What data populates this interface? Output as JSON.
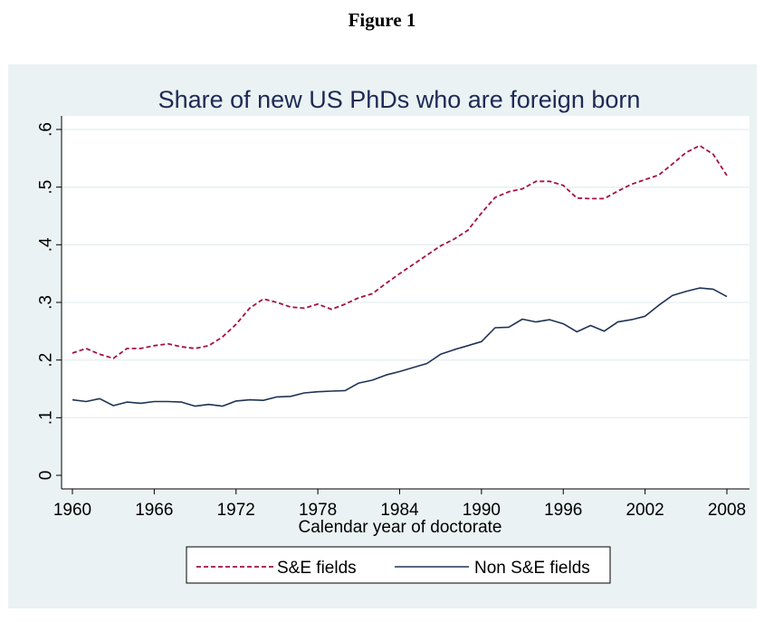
{
  "heading": "Figure 1",
  "chart_data": {
    "type": "line",
    "title": "Share of new US PhDs who are foreign born",
    "xlabel": "Calendar year of doctorate",
    "ylabel": "",
    "xlim": [
      1960,
      2008
    ],
    "ylim": [
      0,
      0.6
    ],
    "xticks": [
      1960,
      1966,
      1972,
      1978,
      1984,
      1990,
      1996,
      2002,
      2008
    ],
    "xtick_labels": [
      "1960",
      "1966",
      "1972",
      "1978",
      "1984",
      "1990",
      "1996",
      "2002",
      "2008"
    ],
    "yticks": [
      0,
      0.1,
      0.2,
      0.3,
      0.4,
      0.5,
      0.6
    ],
    "ytick_labels": [
      "0",
      ".1",
      ".2",
      ".3",
      ".4",
      ".5",
      ".6"
    ],
    "grid": true,
    "legend_position": "bottom",
    "x": [
      1960,
      1961,
      1962,
      1963,
      1964,
      1965,
      1966,
      1967,
      1968,
      1969,
      1970,
      1971,
      1972,
      1973,
      1974,
      1975,
      1976,
      1977,
      1978,
      1979,
      1980,
      1981,
      1982,
      1983,
      1984,
      1985,
      1986,
      1987,
      1988,
      1989,
      1990,
      1991,
      1992,
      1993,
      1994,
      1995,
      1996,
      1997,
      1998,
      1999,
      2000,
      2001,
      2002,
      2003,
      2004,
      2005,
      2006,
      2007,
      2008
    ],
    "series": [
      {
        "name": "S&E fields",
        "color": "#a3123f",
        "style": "dashed",
        "values": [
          0.212,
          0.22,
          0.21,
          0.203,
          0.22,
          0.22,
          0.225,
          0.228,
          0.223,
          0.22,
          0.225,
          0.24,
          0.262,
          0.29,
          0.306,
          0.3,
          0.292,
          0.29,
          0.297,
          0.288,
          0.297,
          0.308,
          0.315,
          0.333,
          0.35,
          0.366,
          0.382,
          0.398,
          0.41,
          0.425,
          0.455,
          0.482,
          0.492,
          0.497,
          0.51,
          0.51,
          0.503,
          0.481,
          0.48,
          0.48,
          0.493,
          0.505,
          0.513,
          0.521,
          0.54,
          0.56,
          0.572,
          0.557,
          0.52
        ]
      },
      {
        "name": "Non S&E fields",
        "color": "#1e3354",
        "style": "solid",
        "values": [
          0.131,
          0.128,
          0.133,
          0.121,
          0.127,
          0.125,
          0.128,
          0.128,
          0.127,
          0.12,
          0.123,
          0.12,
          0.129,
          0.131,
          0.13,
          0.136,
          0.137,
          0.143,
          0.145,
          0.146,
          0.147,
          0.16,
          0.165,
          0.174,
          0.18,
          0.187,
          0.194,
          0.21,
          0.218,
          0.225,
          0.232,
          0.256,
          0.257,
          0.271,
          0.266,
          0.27,
          0.263,
          0.249,
          0.26,
          0.25,
          0.266,
          0.27,
          0.276,
          0.295,
          0.312,
          0.319,
          0.325,
          0.323,
          0.31
        ]
      }
    ]
  }
}
